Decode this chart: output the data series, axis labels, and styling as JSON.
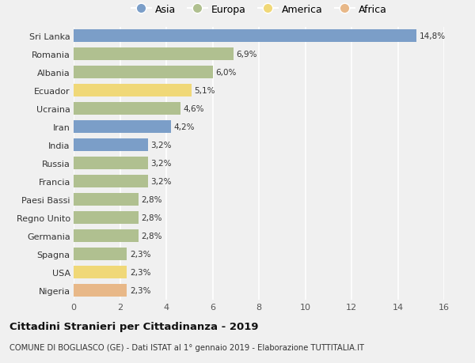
{
  "categories": [
    "Sri Lanka",
    "Romania",
    "Albania",
    "Ecuador",
    "Ucraina",
    "Iran",
    "India",
    "Russia",
    "Francia",
    "Paesi Bassi",
    "Regno Unito",
    "Germania",
    "Spagna",
    "USA",
    "Nigeria"
  ],
  "values": [
    14.8,
    6.9,
    6.0,
    5.1,
    4.6,
    4.2,
    3.2,
    3.2,
    3.2,
    2.8,
    2.8,
    2.8,
    2.3,
    2.3,
    2.3
  ],
  "labels": [
    "14,8%",
    "6,9%",
    "6,0%",
    "5,1%",
    "4,6%",
    "4,2%",
    "3,2%",
    "3,2%",
    "3,2%",
    "2,8%",
    "2,8%",
    "2,8%",
    "2,3%",
    "2,3%",
    "2,3%"
  ],
  "continents": [
    "Asia",
    "Europa",
    "Europa",
    "America",
    "Europa",
    "Asia",
    "Asia",
    "Europa",
    "Europa",
    "Europa",
    "Europa",
    "Europa",
    "Europa",
    "America",
    "Africa"
  ],
  "colors": {
    "Asia": "#7b9ec8",
    "Europa": "#b0c090",
    "America": "#f0d878",
    "Africa": "#e8b888"
  },
  "legend_labels": [
    "Asia",
    "Europa",
    "America",
    "Africa"
  ],
  "legend_colors": [
    "#7b9ec8",
    "#b0c090",
    "#f0d878",
    "#e8b888"
  ],
  "title": "Cittadini Stranieri per Cittadinanza - 2019",
  "subtitle": "COMUNE DI BOGLIASCO (GE) - Dati ISTAT al 1° gennaio 2019 - Elaborazione TUTTITALIA.IT",
  "xlim": [
    0,
    16
  ],
  "xticks": [
    0,
    2,
    4,
    6,
    8,
    10,
    12,
    14,
    16
  ],
  "background_color": "#f0f0f0",
  "grid_color": "#ffffff",
  "bar_height": 0.7,
  "figsize": [
    6.0,
    4.6
  ],
  "dpi": 100
}
